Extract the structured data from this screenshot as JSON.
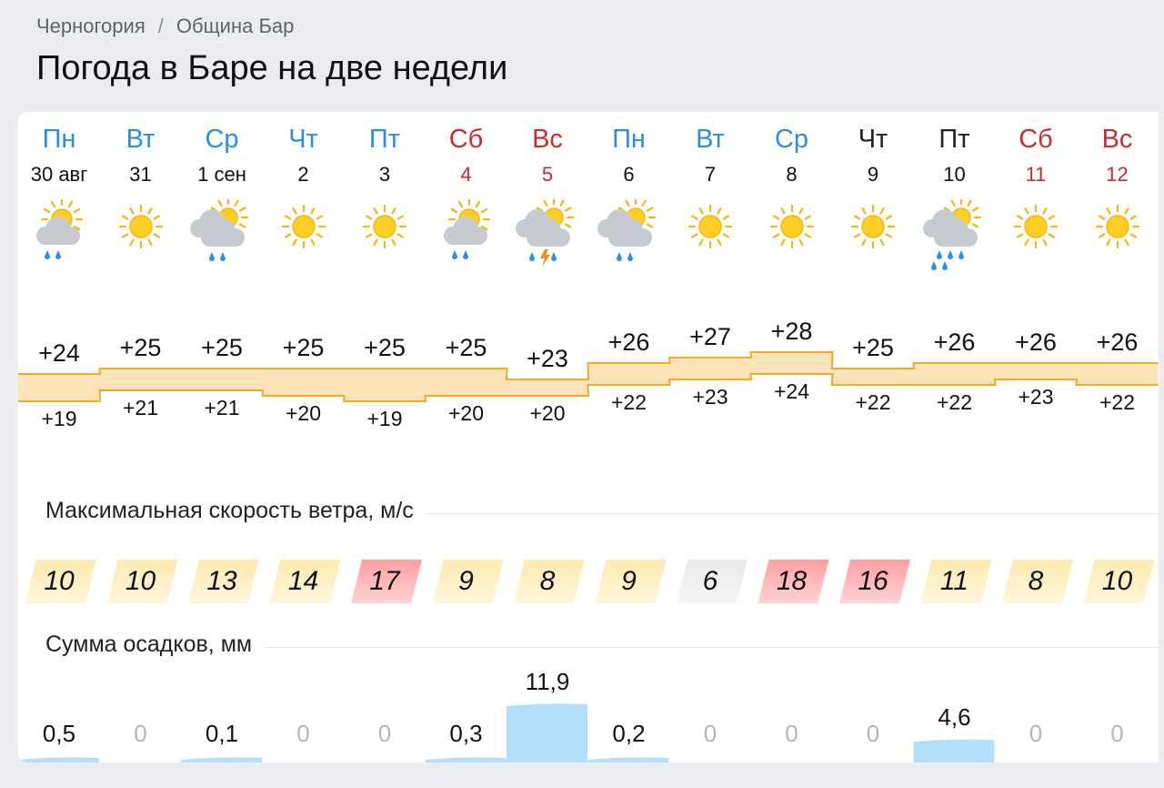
{
  "breadcrumb": {
    "country": "Черногория",
    "separator": "/",
    "municipality": "Община Бар"
  },
  "title": "Погода в Баре на две недели",
  "sections": {
    "wind_title": "Максимальная скорость ветра, м/с",
    "precip_title": "Сумма осадков, мм"
  },
  "colors": {
    "weekday": "#2b8ee0",
    "weekend": "#c62e2e",
    "wind_calm": "#e9e9ec",
    "wind_moderate": "#ffeab0",
    "wind_strong": "#ff9ea1",
    "temp_band": "#fde3b8",
    "temp_line": "#f2a92c",
    "precip_bar": "#b4dffb"
  },
  "days": [
    {
      "name": "Пн",
      "date": "30 авг",
      "kind": "wk",
      "icon": "partly-cloudy-rain-icon",
      "tmax": "+24",
      "tmin": "+19",
      "max": 24,
      "min": 19,
      "wind": "10",
      "wind_level": "moderate",
      "precip": "0,5",
      "precip_mm": 0.5
    },
    {
      "name": "Вт",
      "date": "31",
      "kind": "wk",
      "icon": "sun-icon",
      "tmax": "+25",
      "tmin": "+21",
      "max": 25,
      "min": 21,
      "wind": "10",
      "wind_level": "moderate",
      "precip": "0",
      "precip_mm": 0
    },
    {
      "name": "Ср",
      "date": "1 сен",
      "kind": "wk",
      "icon": "cloudy-rain-icon",
      "tmax": "+25",
      "tmin": "+21",
      "max": 25,
      "min": 21,
      "wind": "13",
      "wind_level": "moderate",
      "precip": "0,1",
      "precip_mm": 0.1
    },
    {
      "name": "Чт",
      "date": "2",
      "kind": "wk",
      "icon": "sun-icon",
      "tmax": "+25",
      "tmin": "+20",
      "max": 25,
      "min": 20,
      "wind": "14",
      "wind_level": "moderate",
      "precip": "0",
      "precip_mm": 0
    },
    {
      "name": "Пт",
      "date": "3",
      "kind": "wk",
      "icon": "sun-icon",
      "tmax": "+25",
      "tmin": "+19",
      "max": 25,
      "min": 19,
      "wind": "17",
      "wind_level": "strong",
      "precip": "0",
      "precip_mm": 0
    },
    {
      "name": "Сб",
      "date": "4",
      "kind": "we",
      "icon": "partly-cloudy-rain-icon",
      "tmax": "+25",
      "tmin": "+20",
      "max": 25,
      "min": 20,
      "wind": "9",
      "wind_level": "moderate",
      "precip": "0,3",
      "precip_mm": 0.3
    },
    {
      "name": "Вс",
      "date": "5",
      "kind": "we",
      "icon": "thunderstorm-icon",
      "tmax": "+23",
      "tmin": "+20",
      "max": 23,
      "min": 20,
      "wind": "8",
      "wind_level": "moderate",
      "precip": "11,9",
      "precip_mm": 11.9
    },
    {
      "name": "Пн",
      "date": "6",
      "kind": "wk",
      "icon": "cloudy-rain-icon",
      "tmax": "+26",
      "tmin": "+22",
      "max": 26,
      "min": 22,
      "wind": "9",
      "wind_level": "moderate",
      "precip": "0,2",
      "precip_mm": 0.2
    },
    {
      "name": "Вт",
      "date": "7",
      "kind": "wk",
      "icon": "sun-icon",
      "tmax": "+27",
      "tmin": "+23",
      "max": 27,
      "min": 23,
      "wind": "6",
      "wind_level": "calm",
      "precip": "0",
      "precip_mm": 0
    },
    {
      "name": "Ср",
      "date": "8",
      "kind": "wk",
      "icon": "sun-icon",
      "tmax": "+28",
      "tmin": "+24",
      "max": 28,
      "min": 24,
      "wind": "18",
      "wind_level": "strong",
      "precip": "0",
      "precip_mm": 0
    },
    {
      "name": "Чт",
      "date": "9",
      "kind": "wd",
      "icon": "sun-icon",
      "tmax": "+25",
      "tmin": "+22",
      "max": 25,
      "min": 22,
      "wind": "16",
      "wind_level": "strong",
      "precip": "0",
      "precip_mm": 0
    },
    {
      "name": "Пт",
      "date": "10",
      "kind": "wd",
      "icon": "heavy-rain-icon",
      "tmax": "+26",
      "tmin": "+22",
      "max": 26,
      "min": 22,
      "wind": "11",
      "wind_level": "moderate",
      "precip": "4,6",
      "precip_mm": 4.6
    },
    {
      "name": "Сб",
      "date": "11",
      "kind": "we",
      "icon": "sun-icon",
      "tmax": "+26",
      "tmin": "+23",
      "max": 26,
      "min": 23,
      "wind": "8",
      "wind_level": "moderate",
      "precip": "0",
      "precip_mm": 0
    },
    {
      "name": "Вс",
      "date": "12",
      "kind": "we",
      "icon": "sun-icon",
      "tmax": "+26",
      "tmin": "+22",
      "max": 26,
      "min": 22,
      "wind": "10",
      "wind_level": "moderate",
      "precip": "0",
      "precip_mm": 0
    }
  ]
}
